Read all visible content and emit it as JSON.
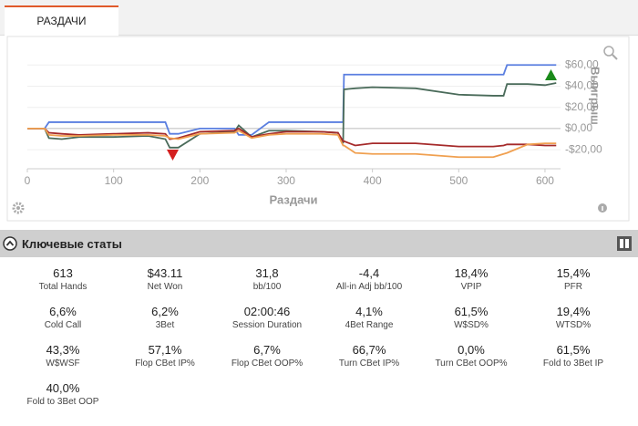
{
  "tab": "РАЗДАЧИ",
  "chart_data": {
    "type": "line",
    "x_label": "Раздачи",
    "y_label": "Выигрыш",
    "x": [
      0,
      20,
      25,
      40,
      60,
      100,
      140,
      160,
      165,
      175,
      200,
      240,
      245,
      260,
      280,
      300,
      340,
      360,
      366,
      367,
      380,
      400,
      450,
      500,
      540,
      552,
      556,
      580,
      600,
      613
    ],
    "series": [
      {
        "color": "#5b7fe0",
        "values": [
          0,
          0,
          6,
          6,
          6,
          6,
          6,
          6,
          -5,
          -5,
          0,
          0,
          -6,
          -6,
          6,
          6,
          6,
          6,
          6,
          51,
          51,
          51,
          51,
          51,
          51,
          51,
          60,
          60,
          60,
          60
        ]
      },
      {
        "color": "#4a6b5a",
        "values": [
          0,
          0,
          -9,
          -10,
          -8,
          -8,
          -7,
          -10,
          -18,
          -18,
          -5,
          -3,
          3,
          -8,
          -2,
          -2,
          -3,
          -4,
          -14,
          37,
          38,
          39,
          38,
          32,
          31,
          31,
          42,
          42,
          41,
          43
        ]
      },
      {
        "color": "#a52a2a",
        "values": [
          0,
          0,
          -4,
          -5,
          -6,
          -5,
          -4,
          -5,
          -10,
          -9,
          -3,
          -2,
          0,
          -8,
          -5,
          -3,
          -3,
          -4,
          -12,
          -12,
          -16,
          -14,
          -14,
          -17,
          -17,
          -16,
          -15,
          -15,
          -16,
          -16
        ]
      },
      {
        "color": "#f0a050",
        "values": [
          0,
          0,
          -6,
          -7,
          -7,
          -6,
          -6,
          -7,
          -9,
          -10,
          -5,
          -4,
          -2,
          -9,
          -6,
          -5,
          -5,
          -6,
          -16,
          -16,
          -23,
          -24,
          -24,
          -27,
          -27,
          -24,
          -23,
          -15,
          -14,
          -14
        ]
      }
    ],
    "xlim": [
      0,
      618
    ],
    "xticks": [
      0,
      100,
      200,
      300,
      400,
      500,
      600
    ],
    "ylim": [
      -38,
      68
    ],
    "yticks": [
      {
        "value": -20,
        "label": "-$20,00"
      },
      {
        "value": 0,
        "label": "$0,00"
      },
      {
        "value": 20,
        "label": "$20,00"
      },
      {
        "value": 40,
        "label": "$40,00"
      },
      {
        "value": 60,
        "label": "$60,00"
      }
    ],
    "grid": true
  },
  "section_title": "Ключевые статы",
  "stats": [
    {
      "value": "613",
      "label": "Total Hands"
    },
    {
      "value": "$43.11",
      "label": "Net Won"
    },
    {
      "value": "31,8",
      "label": "bb/100"
    },
    {
      "value": "-4,4",
      "label": "All-in Adj bb/100"
    },
    {
      "value": "18,4%",
      "label": "VPIP"
    },
    {
      "value": "15,4%",
      "label": "PFR"
    },
    {
      "value": "6,6%",
      "label": "Cold Call"
    },
    {
      "value": "6,2%",
      "label": "3Bet"
    },
    {
      "value": "02:00:46",
      "label": "Session Duration"
    },
    {
      "value": "4,1%",
      "label": "4Bet Range"
    },
    {
      "value": "61,5%",
      "label": "W$SD%"
    },
    {
      "value": "19,4%",
      "label": "WTSD%"
    },
    {
      "value": "43,3%",
      "label": "W$WSF"
    },
    {
      "value": "57,1%",
      "label": "Flop CBet IP%"
    },
    {
      "value": "6,7%",
      "label": "Flop CBet OOP%"
    },
    {
      "value": "66,7%",
      "label": "Turn CBet IP%"
    },
    {
      "value": "0,0%",
      "label": "Turn CBet OOP%"
    },
    {
      "value": "61,5%",
      "label": "Fold to 3Bet IP"
    },
    {
      "value": "40,0%",
      "label": "Fold to 3Bet OOP"
    }
  ]
}
